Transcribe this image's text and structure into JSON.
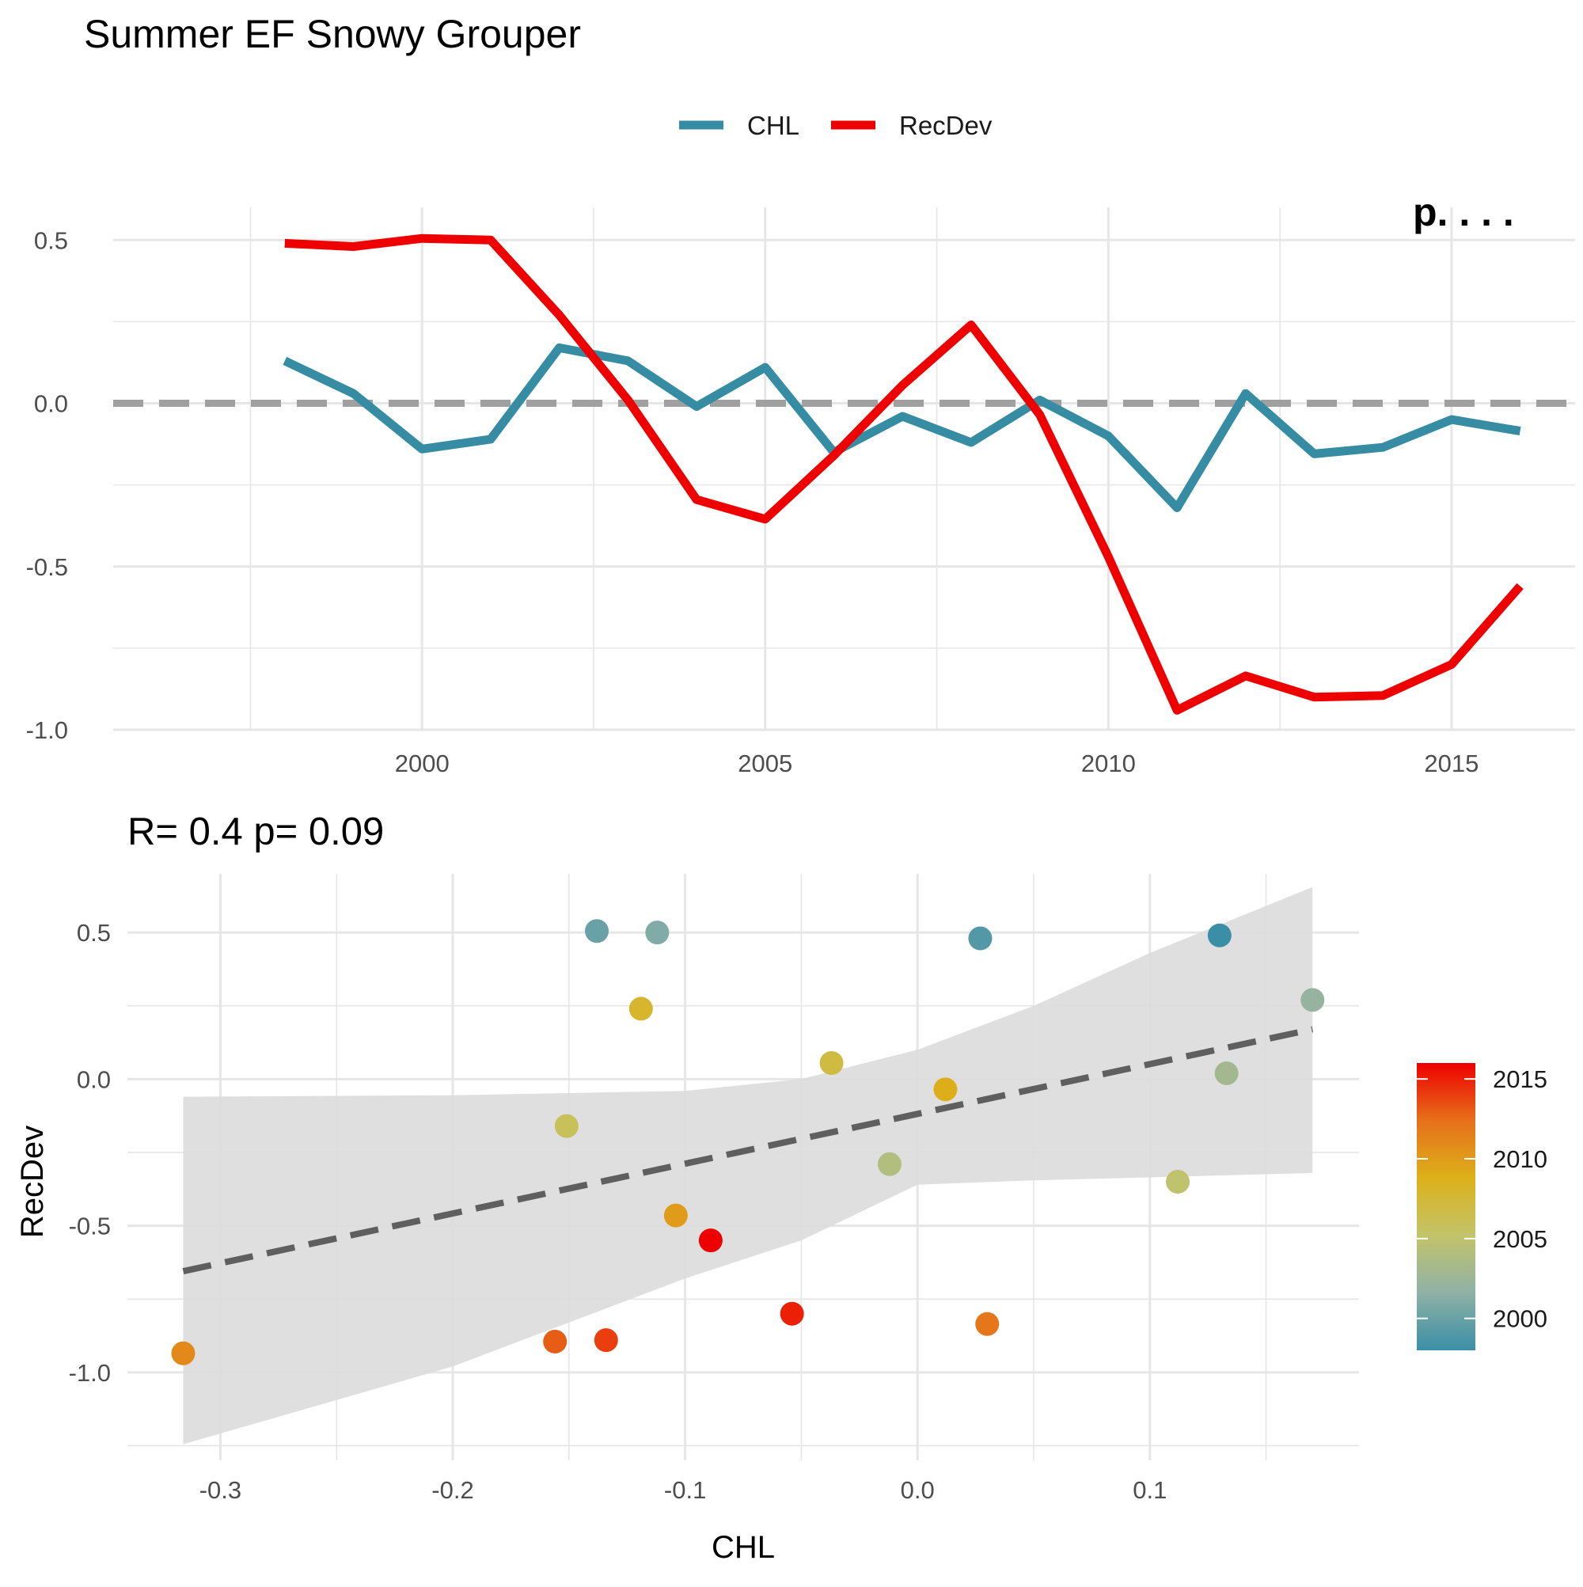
{
  "title": "Summer EF Snowy Grouper",
  "legend": {
    "items": [
      {
        "label": "CHL",
        "color": "#358CA3"
      },
      {
        "label": "RecDev",
        "color": "#EE0000"
      }
    ]
  },
  "top_corner_label": "p. . . .",
  "scatter_annotation": "R= 0.4  p= 0.09",
  "colors": {
    "chl": "#358CA3",
    "recdev": "#EE0000",
    "zero_line": "#A0A0A0",
    "trend_line": "#5F5F5F",
    "ribbon": "#DCDCDC",
    "grid": "#E6E6E6",
    "gradient": [
      "#3A8FA6",
      "#8FB1A6",
      "#C2C46A",
      "#DDB11A",
      "#E6701A",
      "#EE0000"
    ]
  },
  "chart_data": [
    {
      "type": "line",
      "x": [
        1998,
        1999,
        2000,
        2001,
        2002,
        2003,
        2004,
        2005,
        2006,
        2007,
        2008,
        2009,
        2010,
        2011,
        2012,
        2013,
        2014,
        2015,
        2016
      ],
      "series": [
        {
          "name": "CHL",
          "values": [
            0.13,
            0.03,
            -0.14,
            -0.11,
            0.17,
            0.13,
            -0.01,
            0.11,
            -0.15,
            -0.04,
            -0.12,
            0.01,
            -0.1,
            -0.32,
            0.03,
            -0.155,
            -0.135,
            -0.05,
            -0.085
          ]
        },
        {
          "name": "RecDev",
          "values": [
            0.49,
            0.48,
            0.505,
            0.5,
            0.27,
            0.01,
            -0.295,
            -0.355,
            -0.16,
            0.055,
            0.24,
            -0.035,
            -0.47,
            -0.94,
            -0.835,
            -0.9,
            -0.895,
            -0.8,
            -0.56
          ]
        }
      ],
      "xticks": [
        "2000",
        "2005",
        "2010",
        "2015"
      ],
      "yticks": [
        "-1.0",
        "-0.5",
        "0.0",
        "0.5"
      ],
      "xlim": [
        1995.5,
        2016.8
      ],
      "ylim": [
        -1.0,
        0.6
      ],
      "zero_line": 0,
      "grid": true,
      "legend_position": "top"
    },
    {
      "type": "scatter",
      "points": [
        {
          "x": 0.13,
          "y": 0.49,
          "year": 1998
        },
        {
          "x": 0.027,
          "y": 0.48,
          "year": 1999
        },
        {
          "x": -0.138,
          "y": 0.505,
          "year": 2000
        },
        {
          "x": -0.112,
          "y": 0.5,
          "year": 2001
        },
        {
          "x": 0.17,
          "y": 0.27,
          "year": 2002
        },
        {
          "x": 0.133,
          "y": 0.02,
          "year": 2003
        },
        {
          "x": -0.012,
          "y": -0.29,
          "year": 2004
        },
        {
          "x": 0.112,
          "y": -0.35,
          "year": 2005
        },
        {
          "x": -0.151,
          "y": -0.16,
          "year": 2006
        },
        {
          "x": -0.037,
          "y": 0.055,
          "year": 2007
        },
        {
          "x": -0.119,
          "y": 0.24,
          "year": 2008
        },
        {
          "x": 0.012,
          "y": -0.035,
          "year": 2009
        },
        {
          "x": -0.104,
          "y": -0.465,
          "year": 2010
        },
        {
          "x": -0.316,
          "y": -0.935,
          "year": 2011
        },
        {
          "x": 0.03,
          "y": -0.835,
          "year": 2012
        },
        {
          "x": -0.156,
          "y": -0.895,
          "year": 2013
        },
        {
          "x": -0.134,
          "y": -0.89,
          "year": 2014
        },
        {
          "x": -0.054,
          "y": -0.8,
          "year": 2015
        },
        {
          "x": -0.089,
          "y": -0.55,
          "year": 2016
        }
      ],
      "trend": {
        "x": [
          -0.316,
          0.17
        ],
        "y": [
          -0.655,
          0.17
        ]
      },
      "ribbon": {
        "x": [
          -0.316,
          -0.2,
          -0.1,
          -0.05,
          0.0,
          0.05,
          0.1,
          0.17
        ],
        "upper": [
          -0.06,
          -0.055,
          -0.04,
          0.0,
          0.1,
          0.25,
          0.43,
          0.655
        ],
        "lower": [
          -1.245,
          -0.98,
          -0.68,
          -0.55,
          -0.36,
          -0.345,
          -0.335,
          -0.32
        ]
      },
      "xlabel": "CHL",
      "ylabel": "RecDev",
      "xticks": [
        "-0.3",
        "-0.2",
        "-0.1",
        "0.0",
        "0.1"
      ],
      "yticks": [
        "-1.0",
        "-0.5",
        "0.0",
        "0.5"
      ],
      "xlim": [
        -0.34,
        0.19
      ],
      "ylim": [
        -1.3,
        0.7
      ],
      "grid": true,
      "colorbar": {
        "ticks": [
          "2015",
          "2010",
          "2005",
          "2000"
        ],
        "range": [
          1998,
          2016
        ],
        "position": "right"
      }
    }
  ]
}
